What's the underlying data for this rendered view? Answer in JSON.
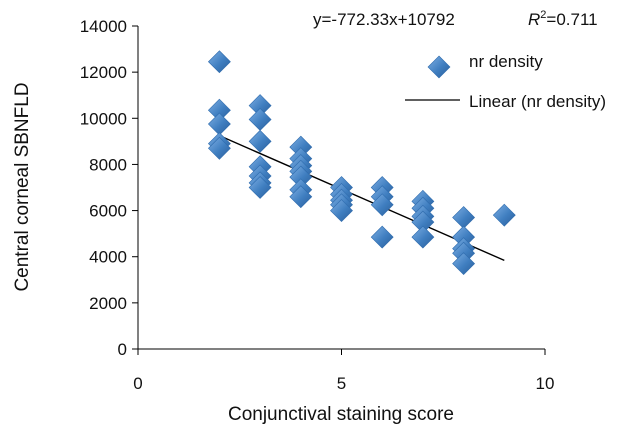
{
  "chart_data": {
    "type": "scatter",
    "xlabel": "Conjunctival staining score",
    "ylabel": "Central corneal SBNFLD",
    "xlim": [
      0,
      10
    ],
    "ylim": [
      0,
      14000
    ],
    "x_ticks": [
      "0",
      "5",
      "10"
    ],
    "y_ticks": [
      "0",
      "2000",
      "4000",
      "6000",
      "8000",
      "10000",
      "12000",
      "14000"
    ],
    "grid": false,
    "legend_position": "top-right",
    "equation": "y=-772.33x+10792",
    "r2_label_italic": "R",
    "r2_label_superscript": "2",
    "r2_value": "=0.711",
    "series": [
      {
        "name": "nr density",
        "marker": "diamond",
        "color": "#3f7ec0",
        "points": [
          [
            2,
            12450
          ],
          [
            2,
            10350
          ],
          [
            2,
            9750
          ],
          [
            2,
            8900
          ],
          [
            2,
            8700
          ],
          [
            3,
            10550
          ],
          [
            3,
            9950
          ],
          [
            3,
            9000
          ],
          [
            3,
            7900
          ],
          [
            3,
            7500
          ],
          [
            3,
            7200
          ],
          [
            3,
            7000
          ],
          [
            4,
            8750
          ],
          [
            4,
            8250
          ],
          [
            4,
            7950
          ],
          [
            4,
            7700
          ],
          [
            4,
            7450
          ],
          [
            4,
            6900
          ],
          [
            4,
            6600
          ],
          [
            5,
            7000
          ],
          [
            5,
            6700
          ],
          [
            5,
            6450
          ],
          [
            5,
            6250
          ],
          [
            5,
            6000
          ],
          [
            6,
            7000
          ],
          [
            6,
            6600
          ],
          [
            6,
            6250
          ],
          [
            6,
            4850
          ],
          [
            7,
            6400
          ],
          [
            7,
            6100
          ],
          [
            7,
            5750
          ],
          [
            7,
            5500
          ],
          [
            7,
            4850
          ],
          [
            8,
            5700
          ],
          [
            8,
            4850
          ],
          [
            8,
            4350
          ],
          [
            8,
            4150
          ],
          [
            8,
            3700
          ],
          [
            9,
            5800
          ]
        ]
      },
      {
        "name": "Linear (nr density)",
        "type": "line",
        "color": "#000000",
        "slope": -772.33,
        "intercept": 10792,
        "x_range": [
          2,
          9
        ]
      }
    ]
  }
}
